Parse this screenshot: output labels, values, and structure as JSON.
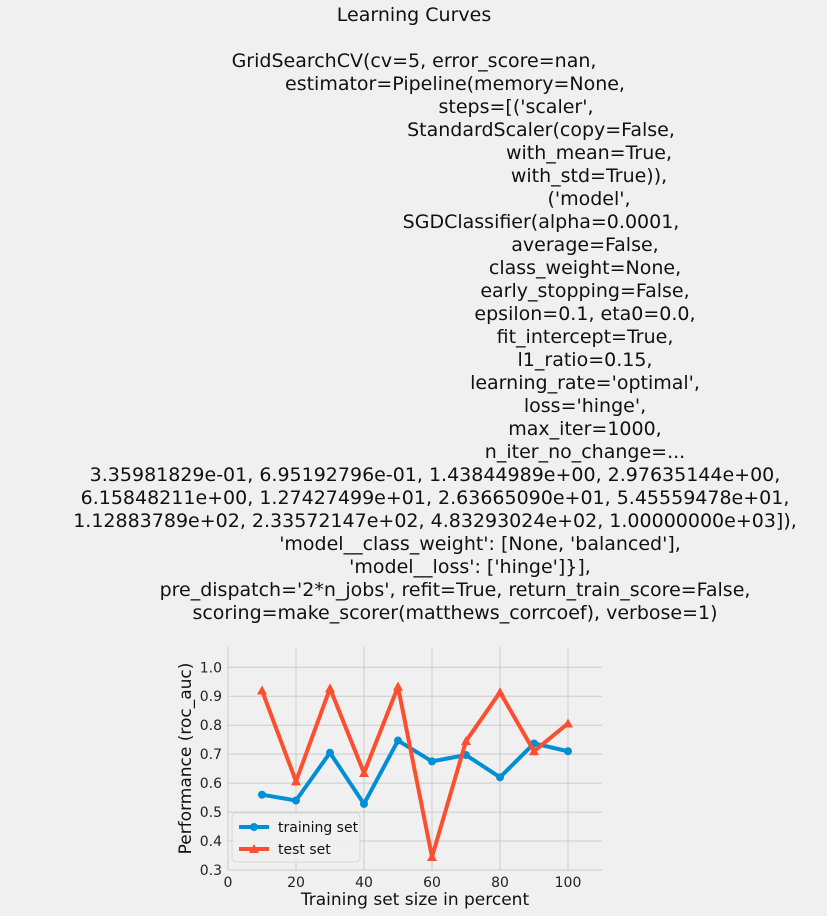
{
  "chart_data": {
    "type": "line",
    "title_lines": [
      "Learning Curves",
      "",
      "GridSearchCV(cv=5, error_score=nan,",
      "estimator=Pipeline(memory=None,",
      "steps=[('scaler',",
      "StandardScaler(copy=False,",
      "with_mean=True,",
      "with_std=True)),",
      "('model',",
      "SGDClassifier(alpha=0.0001,",
      "average=False,",
      "class_weight=None,",
      "early_stopping=False,",
      "epsilon=0.1, eta0=0.0,",
      "fit_intercept=True,",
      "l1_ratio=0.15,",
      "learning_rate='optimal',",
      "loss='hinge',",
      "max_iter=1000,",
      "n_iter_no_change=...",
      "3.35981829e-01, 6.95192796e-01, 1.43844989e+00, 2.97635144e+00,",
      "6.15848211e+00, 1.27427499e+01, 2.63665090e+01, 5.45559478e+01,",
      "1.12883789e+02, 2.33572147e+02, 4.83293024e+02, 1.00000000e+03]),",
      "'model__class_weight': [None, 'balanced'],",
      "'model__loss': ['hinge']}],",
      "pre_dispatch='2*n_jobs', refit=True, return_train_score=False,",
      "scoring=make_scorer(matthews_corrcoef), verbose=1)"
    ],
    "xlabel": "Training set size in percent",
    "ylabel": "Performance (roc_auc)",
    "xlim": [
      0,
      110
    ],
    "ylim": [
      0.3,
      1.07
    ],
    "xticks": [
      0,
      20,
      40,
      60,
      80,
      100
    ],
    "yticks": [
      0.3,
      0.4,
      0.5,
      0.6,
      0.7,
      0.8,
      0.9,
      1.0
    ],
    "xtick_labels": [
      "0",
      "20",
      "40",
      "60",
      "80",
      "100"
    ],
    "ytick_labels": [
      "0.3",
      "0.4",
      "0.5",
      "0.6",
      "0.7",
      "0.8",
      "0.9",
      "1.0"
    ],
    "grid": true,
    "legend_position": "lower-left",
    "x": [
      10,
      20,
      30,
      40,
      50,
      60,
      70,
      80,
      90,
      100
    ],
    "series": [
      {
        "name": "training set",
        "color": "#008fd5",
        "marker": "circle",
        "values": [
          0.56,
          0.54,
          0.705,
          0.528,
          0.747,
          0.675,
          0.697,
          0.62,
          0.737,
          0.71
        ]
      },
      {
        "name": "test set",
        "color": "#fc4f30",
        "marker": "triangle",
        "values": [
          0.92,
          0.606,
          0.927,
          0.635,
          0.933,
          0.345,
          0.745,
          0.914,
          0.71,
          0.806
        ]
      }
    ]
  }
}
